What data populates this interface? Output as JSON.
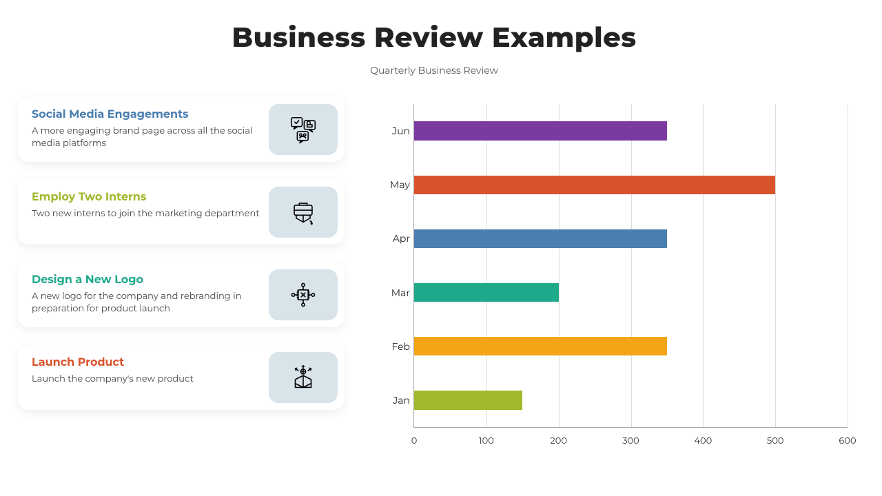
{
  "title": "Business Review Examples",
  "subtitle": "Quarterly Business Review",
  "icon_tile_bg": "#d8e3ea",
  "cards": [
    {
      "title": "Social Media Engagements",
      "title_color": "#4a7fb0",
      "desc": "A more engaging brand page across all the social media platforms",
      "icon": "social"
    },
    {
      "title": "Employ Two Interns",
      "title_color": "#a0b82c",
      "desc": "Two new interns to join the marketing department",
      "icon": "intern"
    },
    {
      "title": "Design a New Logo",
      "title_color": "#1ea98a",
      "desc": "A new logo for the company and rebranding in preparation for product launch",
      "icon": "design"
    },
    {
      "title": "Launch Product",
      "title_color": "#d9542c",
      "desc": "Launch the company's new product",
      "icon": "launch"
    }
  ],
  "chart": {
    "type": "bar_horizontal",
    "xlim": [
      0,
      600
    ],
    "xtick_step": 100,
    "xticks": [
      0,
      100,
      200,
      300,
      400,
      500,
      600
    ],
    "grid_color": "#dddddd",
    "axis_color": "#aaaaaa",
    "label_fontsize": 14,
    "tick_fontsize": 13,
    "bar_thickness_ratio": 0.35,
    "background_color": "#ffffff",
    "rows": [
      {
        "label": "Jun",
        "value": 350,
        "color": "#7a3aa0"
      },
      {
        "label": "May",
        "value": 500,
        "color": "#d9542c"
      },
      {
        "label": "Apr",
        "value": 350,
        "color": "#4a7fb0"
      },
      {
        "label": "Mar",
        "value": 200,
        "color": "#1ea98a"
      },
      {
        "label": "Feb",
        "value": 350,
        "color": "#f2a516"
      },
      {
        "label": "Jan",
        "value": 150,
        "color": "#a0b82c"
      }
    ]
  }
}
